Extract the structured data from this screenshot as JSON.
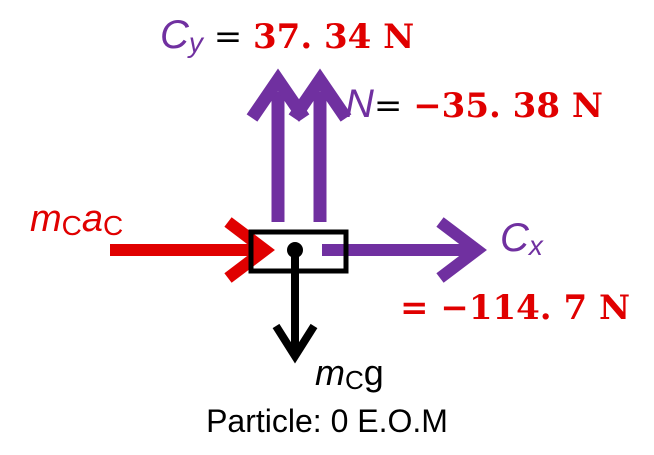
{
  "colors": {
    "purple": "#7030A0",
    "red": "#E00000",
    "black": "#000000"
  },
  "labels": {
    "cy_symbol": "C",
    "cy_subscript": "y",
    "cy_equals": " = ",
    "cy_value": "37. 34 N",
    "n_symbol": "N",
    "n_equals": "= ",
    "n_value": "−35. 38 N",
    "mcac_m": "m",
    "mcac_c": "C",
    "mcac_a": "a",
    "mcac_c2": "C",
    "cx_symbol": "C",
    "cx_subscript": "x",
    "cx_value_line": "= −114. 7 N",
    "mcg_m": "m",
    "mcg_c": "C",
    "mcg_g": "g",
    "caption": "Particle: 0 E.O.M"
  }
}
